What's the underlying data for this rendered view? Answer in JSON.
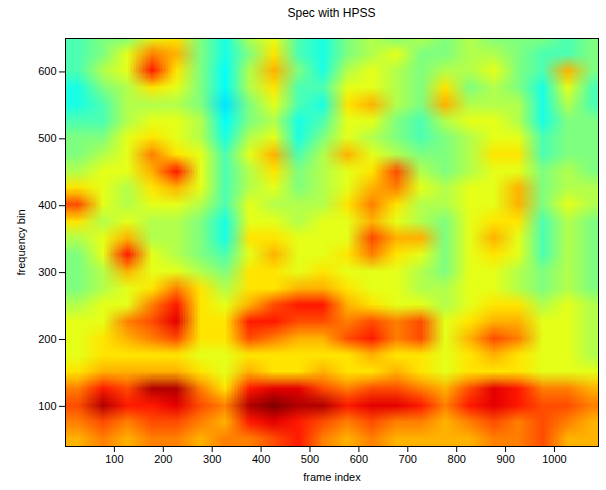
{
  "chart_data": {
    "type": "heatmap",
    "title": "Spec with HPSS",
    "x_label": "frame index",
    "y_label": "frequency bin",
    "xlim": [
      0,
      1090
    ],
    "ylim": [
      40,
      650
    ],
    "xticks": [
      100,
      200,
      300,
      400,
      500,
      600,
      700,
      800,
      900,
      1000
    ],
    "yticks": [
      100,
      200,
      300,
      400,
      500,
      600
    ],
    "z_x_extent": [
      0,
      1100
    ],
    "z_y_extent": [
      40,
      665
    ],
    "zlim": [
      0,
      10
    ],
    "z": [
      [
        4.5,
        5,
        5,
        6,
        6.5,
        5,
        4,
        5.5,
        6,
        4.5,
        4,
        5,
        5.5,
        5,
        5.5,
        5,
        5.5,
        5,
        5,
        5,
        4.5,
        5
      ],
      [
        4.5,
        5,
        6,
        7.5,
        7,
        5,
        4,
        5,
        6.5,
        4.5,
        4,
        5,
        5.5,
        6,
        5,
        5,
        5.5,
        5.5,
        5,
        4.5,
        4.5,
        5
      ],
      [
        4.5,
        5.5,
        6,
        8.5,
        6.5,
        5,
        3.8,
        5.5,
        7,
        5,
        4,
        5.5,
        6,
        5.5,
        5,
        5.5,
        5.5,
        6,
        5,
        4.5,
        7,
        5
      ],
      [
        4,
        5,
        5.5,
        6.5,
        6,
        5,
        3.8,
        5.5,
        6.5,
        4.5,
        4.5,
        6,
        6,
        5.5,
        5,
        6.5,
        5,
        5.5,
        5,
        4,
        6,
        4.5
      ],
      [
        4,
        4.5,
        5.5,
        5.5,
        5.5,
        5,
        3.5,
        5,
        6,
        4.5,
        4,
        6.5,
        7,
        5.5,
        5,
        7,
        5.5,
        5.5,
        5.5,
        4,
        5.5,
        4.5
      ],
      [
        4.5,
        4.5,
        5.5,
        6,
        6,
        5.5,
        3.8,
        5,
        5.5,
        4,
        4.5,
        6,
        6,
        5,
        4.5,
        5.5,
        6,
        6,
        5.5,
        4,
        5,
        5
      ],
      [
        5,
        5,
        6,
        6.5,
        6,
        5.5,
        4,
        5.5,
        6,
        4,
        5,
        6,
        5.5,
        5,
        4.5,
        5,
        5.5,
        6,
        6,
        4.5,
        5,
        5
      ],
      [
        5,
        5.5,
        6,
        7.5,
        6.5,
        6,
        4.5,
        6,
        7,
        4.5,
        5.5,
        7,
        6,
        5.5,
        5,
        5,
        5.5,
        6.5,
        6.5,
        4.5,
        5,
        5
      ],
      [
        5.5,
        6,
        6,
        7,
        8.5,
        6,
        4.5,
        5.5,
        6.5,
        5,
        5.5,
        6,
        6.5,
        8,
        5.5,
        5,
        5.5,
        6,
        6,
        5,
        5.5,
        5
      ],
      [
        6.5,
        6,
        5.5,
        6.5,
        7,
        6,
        4.5,
        5.5,
        6,
        5,
        5.5,
        6,
        7,
        7.5,
        6,
        5.5,
        6,
        6,
        7,
        5,
        5.5,
        5.5
      ],
      [
        8,
        6,
        5.5,
        6,
        6,
        5.5,
        4.5,
        6,
        5.5,
        5.5,
        5.5,
        6.5,
        7.5,
        6.5,
        5.5,
        5.5,
        6,
        6,
        7,
        5,
        6,
        5.5
      ],
      [
        6.5,
        5.5,
        6,
        5.5,
        5.5,
        5,
        4,
        6,
        6,
        5.5,
        6,
        6,
        7,
        6,
        5.5,
        5,
        6,
        6.5,
        6.5,
        4.5,
        5.5,
        5
      ],
      [
        5.5,
        6,
        7,
        5.5,
        5.5,
        5,
        4,
        6.5,
        6.5,
        6,
        6,
        6,
        8,
        7,
        7,
        5,
        6,
        7,
        6,
        4.5,
        5.5,
        5
      ],
      [
        5,
        6,
        8.5,
        6,
        5.5,
        5,
        4.5,
        6,
        7,
        6,
        6,
        6.5,
        7.5,
        6.5,
        6,
        5,
        6,
        6.5,
        6,
        4.5,
        5.5,
        5
      ],
      [
        5,
        5.5,
        7,
        6,
        6,
        5.5,
        5,
        6.5,
        6.5,
        6,
        6.5,
        6,
        6,
        6,
        5.5,
        5,
        6,
        6,
        5.5,
        5,
        5.5,
        5
      ],
      [
        5,
        5.5,
        6,
        6.5,
        7.5,
        6.5,
        5.5,
        6.5,
        6.5,
        7,
        7,
        6.5,
        6,
        6,
        5.5,
        5.5,
        6,
        6,
        5.5,
        5,
        5.5,
        5
      ],
      [
        5.5,
        6,
        6,
        7.5,
        8.5,
        6.5,
        6,
        7,
        8,
        8.5,
        8.5,
        7,
        6.5,
        6,
        6,
        5.5,
        6,
        6.5,
        6.5,
        5.5,
        6,
        5.5
      ],
      [
        6,
        6,
        7.5,
        8,
        9,
        6.5,
        6.5,
        8.5,
        8.5,
        8,
        8,
        7.5,
        8,
        7.5,
        8,
        6,
        6.5,
        7,
        7,
        6,
        6,
        5.5
      ],
      [
        6,
        6.5,
        7,
        7.5,
        8,
        6.5,
        6.5,
        8,
        7.5,
        7,
        7,
        8,
        8.5,
        7.5,
        8,
        6,
        7,
        8,
        7.5,
        6,
        6,
        5.5
      ],
      [
        6,
        6.5,
        6.5,
        6.5,
        6.5,
        6,
        6,
        6.5,
        6.5,
        6.5,
        6.5,
        6.5,
        7,
        6.5,
        6.5,
        6,
        6.5,
        7,
        6.5,
        6,
        6,
        5.5
      ],
      [
        6.5,
        7,
        7,
        7,
        7,
        6.5,
        6,
        7,
        6.5,
        6.5,
        7,
        6.5,
        6.5,
        7,
        6.5,
        6,
        6.5,
        6.5,
        6.5,
        6,
        6,
        6
      ],
      [
        7.5,
        8.5,
        8,
        9.5,
        9.5,
        7.5,
        6.5,
        8.5,
        9,
        9,
        8,
        7.5,
        8,
        8,
        7.5,
        7,
        8,
        9,
        8.5,
        7.5,
        7.5,
        7
      ],
      [
        8,
        9.5,
        8.5,
        8.5,
        9,
        8,
        7.5,
        9.5,
        10,
        9.5,
        9.5,
        8.5,
        9,
        9,
        8.5,
        7.5,
        8.5,
        9,
        8.5,
        8,
        8,
        7.5
      ],
      [
        7.5,
        8,
        7.5,
        8,
        8,
        7.5,
        7,
        8.5,
        9,
        8.5,
        8,
        7.5,
        8,
        7.5,
        7.5,
        7,
        7.5,
        8,
        7.5,
        8,
        7.5,
        7
      ],
      [
        7,
        7.5,
        7,
        7.5,
        7.5,
        7,
        7.5,
        7.5,
        8,
        8.5,
        7.5,
        7,
        7.5,
        7,
        7,
        7,
        7,
        7.5,
        7.5,
        8,
        7,
        7
      ]
    ]
  }
}
